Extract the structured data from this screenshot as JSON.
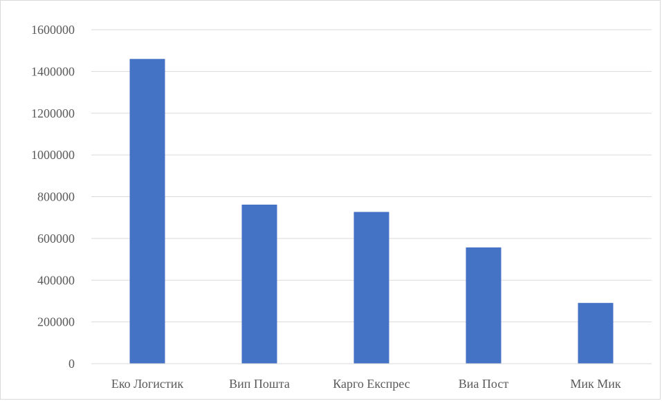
{
  "chart_data": {
    "type": "bar",
    "title": "",
    "xlabel": "",
    "ylabel": "",
    "categories": [
      "Еко Логистик",
      "Вип Пошта",
      "Карго Експрес",
      "Виа Пост",
      "Мик Мик"
    ],
    "values": [
      1460000,
      762000,
      727000,
      557000,
      291000
    ],
    "ylim": [
      0,
      1600000
    ],
    "yticks": [
      "0",
      "200000",
      "400000",
      "600000",
      "800000",
      "1000000",
      "1200000",
      "1400000",
      "1600000"
    ],
    "grid": true,
    "legend": "none",
    "bar_color": "#4472C4",
    "grid_color": "#d9d9d9"
  }
}
